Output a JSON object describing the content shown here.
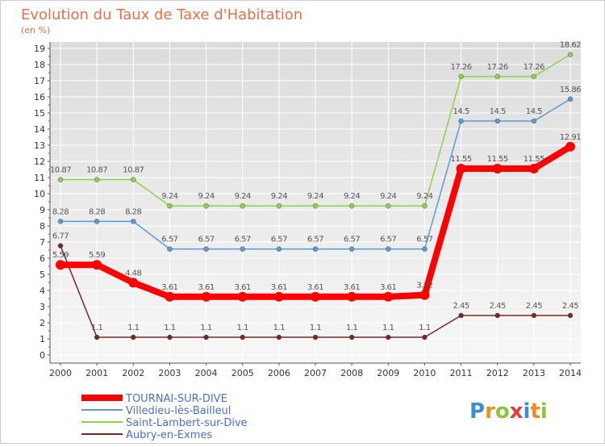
{
  "chart_data": {
    "type": "line",
    "title": "Evolution du Taux de Taxe d'Habitation",
    "subtitle": "(en %)",
    "xlabel": "",
    "ylabel": "",
    "ylim": [
      0,
      19
    ],
    "yticks": [
      0,
      1,
      2,
      3,
      4,
      5,
      6,
      7,
      8,
      9,
      10,
      11,
      12,
      13,
      14,
      15,
      16,
      17,
      18,
      19
    ],
    "categories": [
      "2000",
      "2001",
      "2002",
      "2003",
      "2004",
      "2005",
      "2006",
      "2007",
      "2008",
      "2009",
      "2010",
      "2011",
      "2012",
      "2013",
      "2014"
    ],
    "grid": true,
    "legend_position": "bottom-left",
    "series": [
      {
        "name": "TOURNAI-SUR-DIVE",
        "color": "#ff0000",
        "values": [
          5.59,
          5.59,
          4.48,
          3.61,
          3.61,
          3.61,
          3.61,
          3.61,
          3.61,
          3.61,
          3.72,
          11.55,
          11.55,
          11.55,
          12.91
        ],
        "labels": [
          "5.59",
          "5.59",
          "4.48",
          "3.61",
          "3.61",
          "3.61",
          "3.61",
          "3.61",
          "3.61",
          "3.61",
          "3.72",
          "11.55",
          "11.55",
          "11.55",
          "12.91"
        ]
      },
      {
        "name": "Villedieu-lès-Bailleul",
        "color": "#5b9bd5",
        "values": [
          8.28,
          8.28,
          8.28,
          6.57,
          6.57,
          6.57,
          6.57,
          6.57,
          6.57,
          6.57,
          6.57,
          14.5,
          14.5,
          14.5,
          15.86
        ],
        "labels": [
          "8.28",
          "8.28",
          "8.28",
          "6.57",
          "6.57",
          "6.57",
          "6.57",
          "6.57",
          "6.57",
          "6.57",
          "6.57",
          "14.5",
          "14.5",
          "14.5",
          "15.86"
        ]
      },
      {
        "name": "Saint-Lambert-sur-Dive",
        "color": "#8fd14f",
        "values": [
          10.87,
          10.87,
          10.87,
          9.24,
          9.24,
          9.24,
          9.24,
          9.24,
          9.24,
          9.24,
          9.24,
          17.26,
          17.26,
          17.26,
          18.62
        ],
        "labels": [
          "10.87",
          "10.87",
          "10.87",
          "9.24",
          "9.24",
          "9.24",
          "9.24",
          "9.24",
          "9.24",
          "9.24",
          "9.24",
          "17.26",
          "17.26",
          "17.26",
          "18.62"
        ]
      },
      {
        "name": "Aubry-en-Exmes",
        "color": "#7b2626",
        "values": [
          6.77,
          1.1,
          1.1,
          1.1,
          1.1,
          1.1,
          1.1,
          1.1,
          1.1,
          1.1,
          1.1,
          2.45,
          2.45,
          2.45,
          2.45
        ],
        "labels": [
          "6.77",
          "1.1",
          "1.1",
          "1.1",
          "1.1",
          "1.1",
          "1.1",
          "1.1",
          "1.1",
          "1.1",
          "1.1",
          "2.45",
          "2.45",
          "2.45",
          "2.45"
        ]
      }
    ]
  },
  "brand": {
    "letters": [
      "P",
      "r",
      "o",
      "x",
      "i",
      "t",
      "i"
    ],
    "colors": [
      "#3a8fd9",
      "#f28c1e",
      "#8cc63f",
      "#e23c3c",
      "#3a8fd9",
      "#f28c1e",
      "#8cc63f"
    ]
  }
}
